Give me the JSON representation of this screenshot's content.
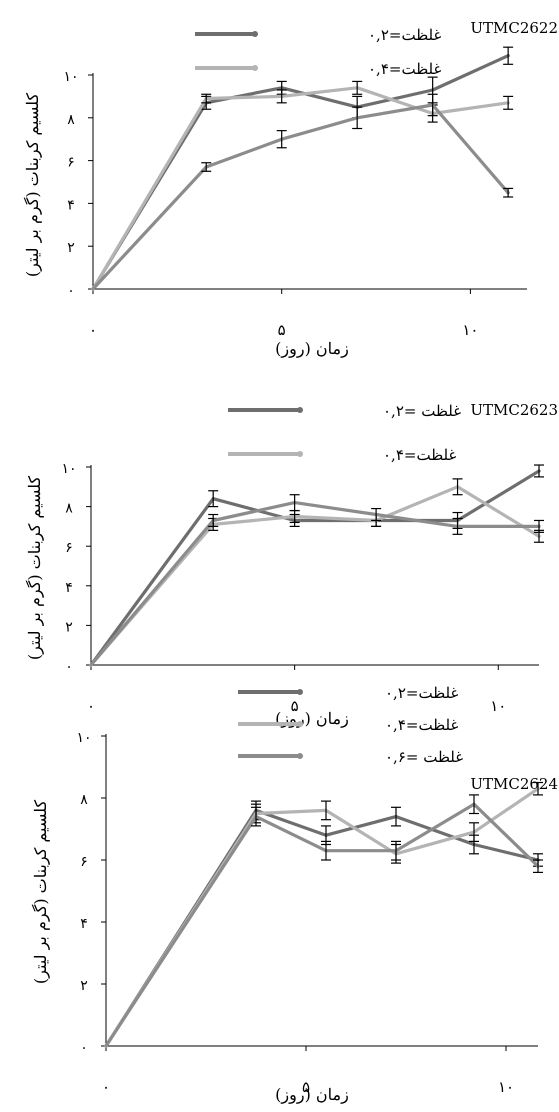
{
  "chart_data": [
    {
      "type": "line",
      "title": "UTMC2622",
      "xlabel": "زمان (روز)",
      "ylabel": "کلسیم کربنات (گرم بر لیتر)",
      "xlim": [
        0,
        11.5
      ],
      "ylim": [
        0,
        10
      ],
      "x_ticks": [
        {
          "v": 0,
          "label": "۰"
        },
        {
          "v": 5,
          "label": "۵"
        },
        {
          "v": 10,
          "label": "۱۰"
        }
      ],
      "y_ticks": [
        {
          "v": 0,
          "label": "۰"
        },
        {
          "v": 2,
          "label": "۲"
        },
        {
          "v": 4,
          "label": "۴"
        },
        {
          "v": 6,
          "label": "۶"
        },
        {
          "v": 8,
          "label": "۸"
        },
        {
          "v": 10,
          "label": "۱۰"
        }
      ],
      "series": [
        {
          "name": "غلظت=۰,۲",
          "color": "#6e6e6e",
          "x": [
            0,
            3,
            5,
            7,
            9,
            11
          ],
          "y": [
            0,
            8.7,
            9.4,
            8.5,
            9.3,
            10.9
          ],
          "err": [
            0,
            0.3,
            0.3,
            0.5,
            0.6,
            0.4
          ]
        },
        {
          "name": "غلظت=۰,۴",
          "color": "#b4b4b4",
          "x": [
            0,
            3,
            5,
            7,
            9,
            11
          ],
          "y": [
            0,
            8.9,
            9.0,
            9.4,
            8.2,
            8.7
          ],
          "err": [
            0,
            0.2,
            0.3,
            0.3,
            0.4,
            0.3
          ]
        },
        {
          "name": "",
          "color": "#8c8c8c",
          "x": [
            0,
            3,
            5,
            7,
            9,
            11
          ],
          "y": [
            0,
            5.7,
            7.0,
            8.0,
            8.6,
            4.5
          ],
          "err": [
            0,
            0.2,
            0.4,
            0.5,
            0.5,
            0.2
          ]
        }
      ],
      "legend": {
        "position": "top"
      }
    },
    {
      "type": "line",
      "title": "UTMC2623",
      "xlabel": "زمان (روز)",
      "ylabel": "کلسیم کربنات (گرم بر لیتر)",
      "xlim": [
        0,
        11
      ],
      "ylim": [
        0,
        10
      ],
      "x_ticks": [
        {
          "v": 0,
          "label": "۰"
        },
        {
          "v": 5,
          "label": "۵"
        },
        {
          "v": 10,
          "label": "۱۰"
        }
      ],
      "y_ticks": [
        {
          "v": 0,
          "label": "۰"
        },
        {
          "v": 2,
          "label": "۲"
        },
        {
          "v": 4,
          "label": "۴"
        },
        {
          "v": 6,
          "label": "۶"
        },
        {
          "v": 8,
          "label": "۸"
        },
        {
          "v": 10,
          "label": "۱۰"
        }
      ],
      "series": [
        {
          "name": "غلظت =۰,۲",
          "color": "#6e6e6e",
          "x": [
            0,
            3,
            5,
            7,
            9,
            11
          ],
          "y": [
            0,
            8.4,
            7.3,
            7.3,
            7.3,
            9.8
          ],
          "err": [
            0,
            0.4,
            0.3,
            0.3,
            0.4,
            0.3
          ]
        },
        {
          "name": "غلظت=۰,۴",
          "color": "#b4b4b4",
          "x": [
            0,
            3,
            5,
            7,
            9,
            11
          ],
          "y": [
            0,
            7.1,
            7.5,
            7.3,
            9.0,
            6.5
          ],
          "err": [
            0,
            0.3,
            0.3,
            0.3,
            0.4,
            0.3
          ]
        },
        {
          "name": "",
          "color": "#8c8c8c",
          "x": [
            0,
            3,
            5,
            7,
            9,
            11
          ],
          "y": [
            0,
            7.3,
            8.2,
            7.6,
            7.0,
            7.0
          ],
          "err": [
            0,
            0.3,
            0.4,
            0.3,
            0.4,
            0.3
          ]
        }
      ],
      "legend": {
        "position": "top"
      }
    },
    {
      "type": "line",
      "title": "UTMC2624",
      "xlabel": "زمان (روز)",
      "ylabel": "کلسیم کربنات (گرم بر لیتر)",
      "xlim": [
        0,
        10.8
      ],
      "ylim": [
        0,
        10
      ],
      "x_ticks": [
        {
          "v": 0,
          "label": "۰"
        },
        {
          "v": 5,
          "label": "۵"
        },
        {
          "v": 10,
          "label": "۱۰"
        }
      ],
      "y_ticks": [
        {
          "v": 0,
          "label": "۰"
        },
        {
          "v": 2,
          "label": "۲"
        },
        {
          "v": 4,
          "label": "۴"
        },
        {
          "v": 6,
          "label": "۶"
        },
        {
          "v": 8,
          "label": "۸"
        },
        {
          "v": 10,
          "label": "۱۰"
        }
      ],
      "series": [
        {
          "name": "غلظت=۰,۲",
          "color": "#6e6e6e",
          "x": [
            0,
            3.75,
            5.5,
            7.25,
            9.2,
            10.8
          ],
          "y": [
            0,
            7.6,
            6.8,
            7.4,
            6.5,
            6.0
          ],
          "err": [
            0,
            0.3,
            0.3,
            0.3,
            0.3,
            0.2
          ]
        },
        {
          "name": "غلظت=۰,۴",
          "color": "#b4b4b4",
          "x": [
            0,
            3.75,
            5.5,
            7.25,
            9.2,
            10.8
          ],
          "y": [
            0,
            7.5,
            7.6,
            6.2,
            6.9,
            8.3
          ],
          "err": [
            0,
            0.3,
            0.3,
            0.3,
            0.3,
            0.2
          ]
        },
        {
          "name": "غلظت =۰,۶",
          "color": "#8c8c8c",
          "x": [
            0,
            3.75,
            5.5,
            7.25,
            9.2,
            10.8
          ],
          "y": [
            0,
            7.4,
            6.3,
            6.3,
            7.8,
            5.8
          ],
          "err": [
            0,
            0.3,
            0.3,
            0.3,
            0.3,
            0.2
          ]
        }
      ],
      "legend": {
        "position": "top"
      }
    }
  ]
}
